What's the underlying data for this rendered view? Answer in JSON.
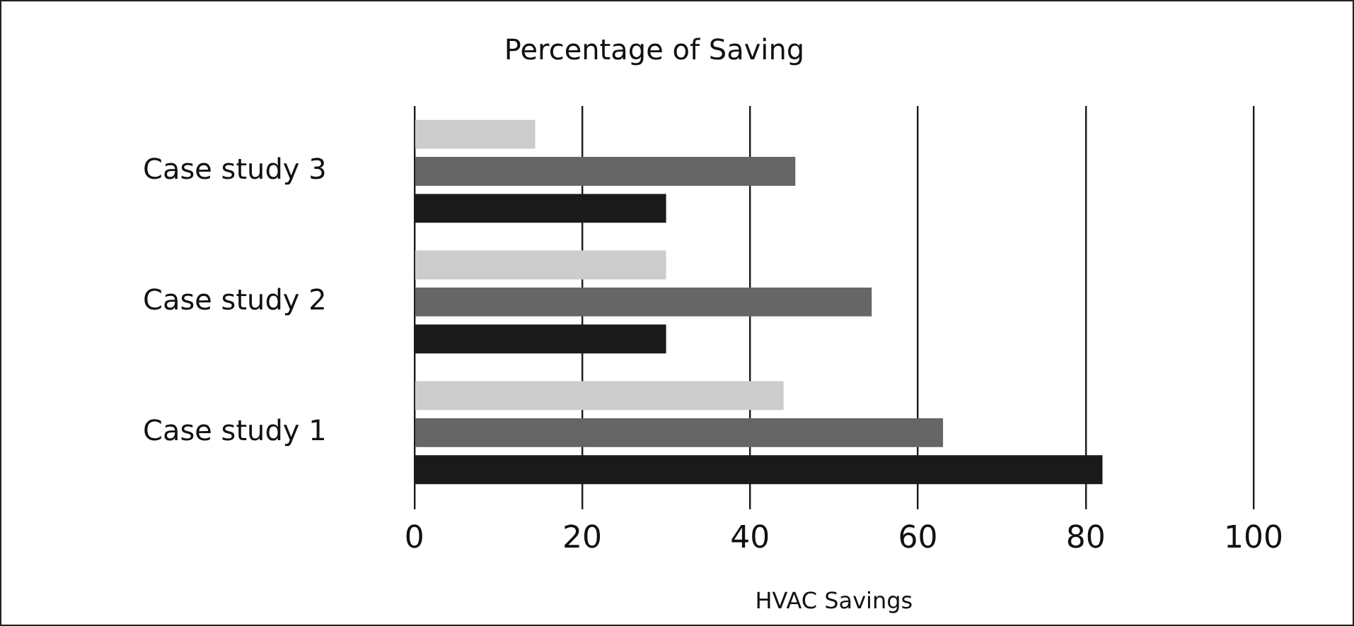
{
  "chart_data": {
    "type": "bar",
    "orientation": "horizontal",
    "title": "Percentage of Saving",
    "xlabel": "HVAC Savings",
    "categories": [
      "Case study 3",
      "Case study 2",
      "Case study 1"
    ],
    "series": [
      {
        "color": "#cccccc",
        "values": [
          14.4,
          30,
          44
        ]
      },
      {
        "color": "#666666",
        "values": [
          45.4,
          54.5,
          63
        ]
      },
      {
        "color": "#1a1a1a",
        "values": [
          30,
          30,
          82
        ]
      }
    ],
    "xlim": [
      0,
      100
    ],
    "xticks": [
      0,
      20,
      40,
      60,
      80,
      100
    ],
    "grid": "x",
    "legend": false
  }
}
